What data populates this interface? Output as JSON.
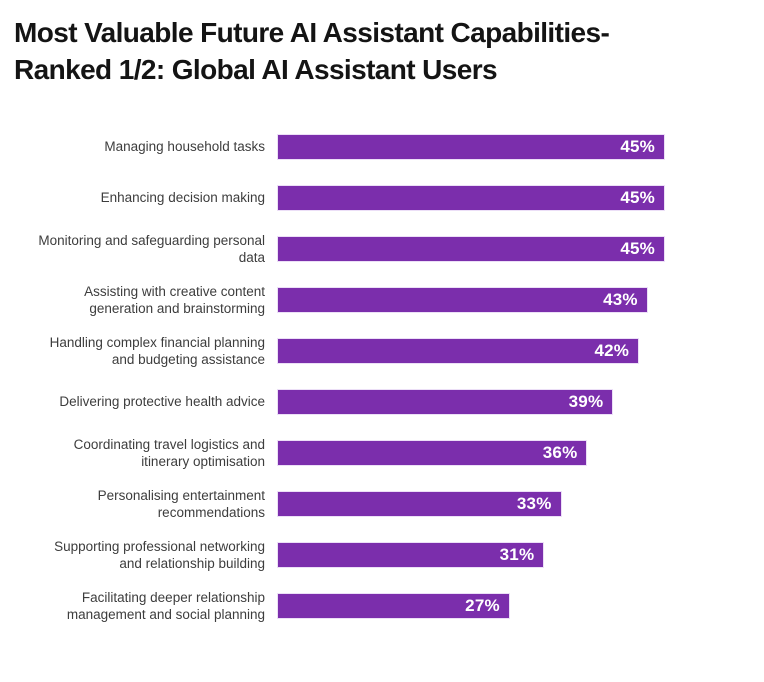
{
  "title": {
    "line1": "Most Valuable Future AI Assistant Capabilities-",
    "line2": "Ranked 1/2: Global AI Assistant Users"
  },
  "chart_data": {
    "type": "bar",
    "orientation": "horizontal",
    "title": "Most Valuable Future AI Assistant Capabilities-Ranked 1/2: Global AI Assistant Users",
    "categories": [
      "Managing household tasks",
      "Enhancing decision making",
      "Monitoring and safeguarding personal data",
      "Assisting with creative content generation and brainstorming",
      "Handling complex financial planning and budgeting assistance",
      "Delivering protective health advice",
      "Coordinating travel logistics and itinerary optimisation",
      "Personalising entertainment recommendations",
      "Supporting professional networking and relationship building",
      "Facilitating deeper relationship management and social planning"
    ],
    "values": [
      45,
      45,
      45,
      43,
      42,
      39,
      36,
      33,
      31,
      27
    ],
    "value_suffix": "%",
    "xlim": [
      0,
      45
    ],
    "grid": false,
    "legend": "none",
    "bar_color": "#7B2EAC",
    "value_label_color": "#FFFFFF",
    "category_label_color": "#3D3D3D",
    "title_color": "#141414",
    "background_color": "#FFFFFF"
  }
}
